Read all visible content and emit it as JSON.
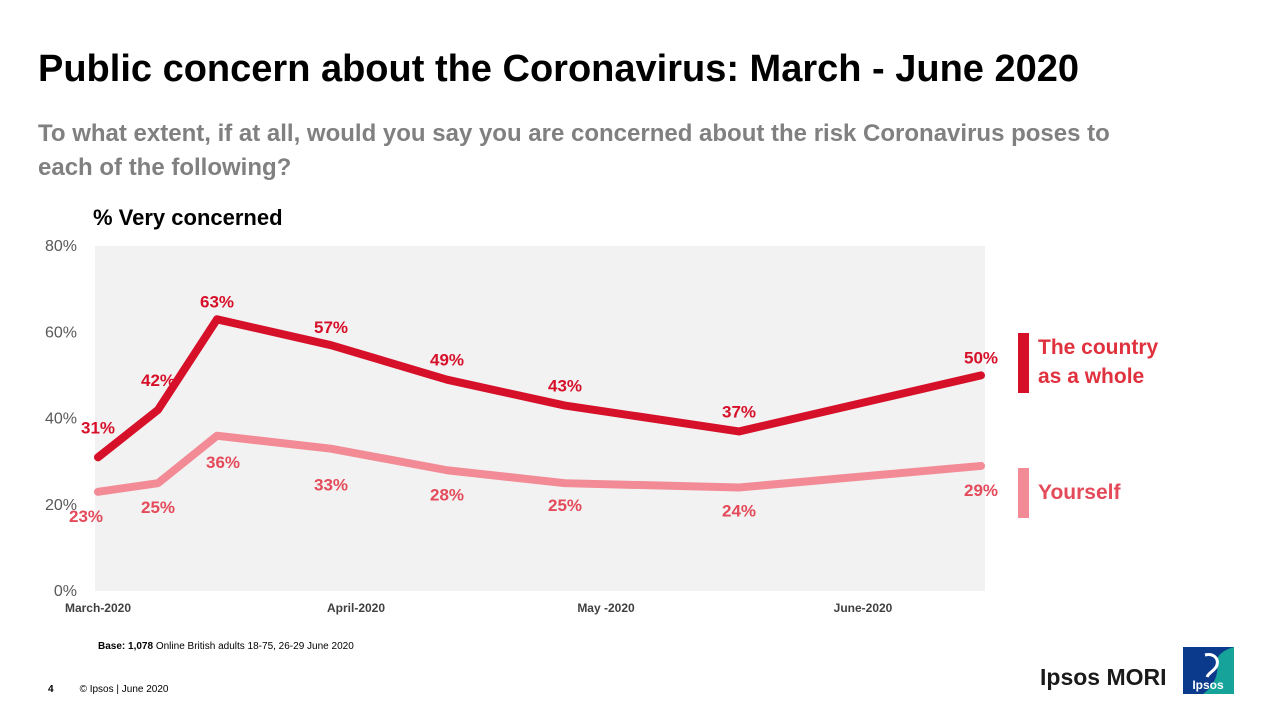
{
  "title": "Public concern about the Coronavirus: March - June 2020",
  "subtitle": "To what extent, if at all, would you say you are concerned about the risk Coronavirus poses to each of the following?",
  "colors": {
    "country": "#d7102a",
    "yourself": "#f28b95",
    "country_label": "#e0313e",
    "yourself_label": "#e44b5a",
    "plot_bg": "#f2f2f2"
  },
  "chart_data": {
    "type": "line",
    "ylabel": "% Very concerned",
    "ylim": [
      0,
      80
    ],
    "y_ticks": [
      "0%",
      "20%",
      "40%",
      "60%",
      "80%"
    ],
    "x_tick_labels": [
      "March-2020",
      "April-2020",
      "May -2020",
      "June-2020"
    ],
    "grid": false,
    "legend_position": "right",
    "series": [
      {
        "name": "The country as a whole",
        "legend_lines": [
          "The country",
          "as a whole"
        ],
        "values": [
          31,
          42,
          63,
          57,
          49,
          43,
          37,
          50
        ],
        "labels": [
          "31%",
          "42%",
          "63%",
          "57%",
          "49%",
          "43%",
          "37%",
          "50%"
        ]
      },
      {
        "name": "Yourself",
        "legend_lines": [
          "Yourself"
        ],
        "values": [
          23,
          25,
          36,
          33,
          28,
          25,
          24,
          29
        ],
        "labels": [
          "23%",
          "25%",
          "36%",
          "33%",
          "28%",
          "25%",
          "24%",
          "29%"
        ]
      }
    ]
  },
  "footnote": {
    "base_label": "Base:",
    "base_number": "1,078",
    "base_text": "Online British adults 18-75, 26-29 June 2020"
  },
  "footer": {
    "page_number": "4",
    "copyright": "© Ipsos | June 2020"
  },
  "brand": {
    "name": "Ipsos MORI",
    "logo_text": "Ipsos"
  }
}
